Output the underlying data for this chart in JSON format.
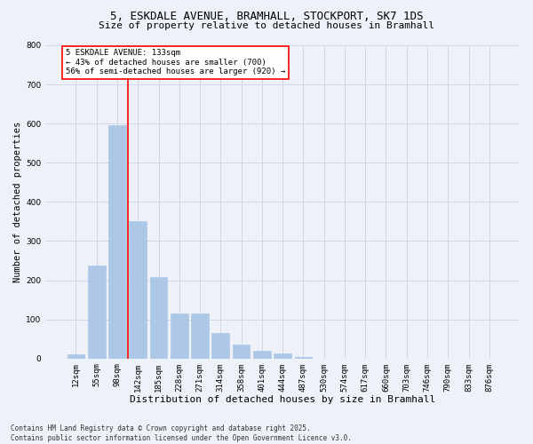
{
  "title_line1": "5, ESKDALE AVENUE, BRAMHALL, STOCKPORT, SK7 1DS",
  "title_line2": "Size of property relative to detached houses in Bramhall",
  "xlabel": "Distribution of detached houses by size in Bramhall",
  "ylabel": "Number of detached properties",
  "categories": [
    "12sqm",
    "55sqm",
    "98sqm",
    "142sqm",
    "185sqm",
    "228sqm",
    "271sqm",
    "314sqm",
    "358sqm",
    "401sqm",
    "444sqm",
    "487sqm",
    "530sqm",
    "574sqm",
    "617sqm",
    "660sqm",
    "703sqm",
    "746sqm",
    "790sqm",
    "833sqm",
    "876sqm"
  ],
  "values": [
    10,
    238,
    595,
    350,
    208,
    115,
    115,
    65,
    35,
    20,
    12,
    5,
    0,
    0,
    0,
    0,
    0,
    0,
    0,
    0,
    0
  ],
  "bar_color": "#adc8e6",
  "bar_edge_color": "#adc8e6",
  "vline_color": "red",
  "annotation_text": "5 ESKDALE AVENUE: 133sqm\n← 43% of detached houses are smaller (700)\n56% of semi-detached houses are larger (920) →",
  "annotation_box_color": "white",
  "annotation_box_edge_color": "red",
  "annotation_fontsize": 6.5,
  "background_color": "#eef2f8",
  "grid_color": "#c8d4e8",
  "ylim": [
    0,
    800
  ],
  "yticks": [
    0,
    100,
    200,
    300,
    400,
    500,
    600,
    700,
    800
  ],
  "footer_text": "Contains HM Land Registry data © Crown copyright and database right 2025.\nContains public sector information licensed under the Open Government Licence v3.0.",
  "title_fontsize": 9,
  "subtitle_fontsize": 8,
  "xlabel_fontsize": 8,
  "ylabel_fontsize": 7.5,
  "tick_fontsize": 6.5,
  "footer_fontsize": 5.5
}
